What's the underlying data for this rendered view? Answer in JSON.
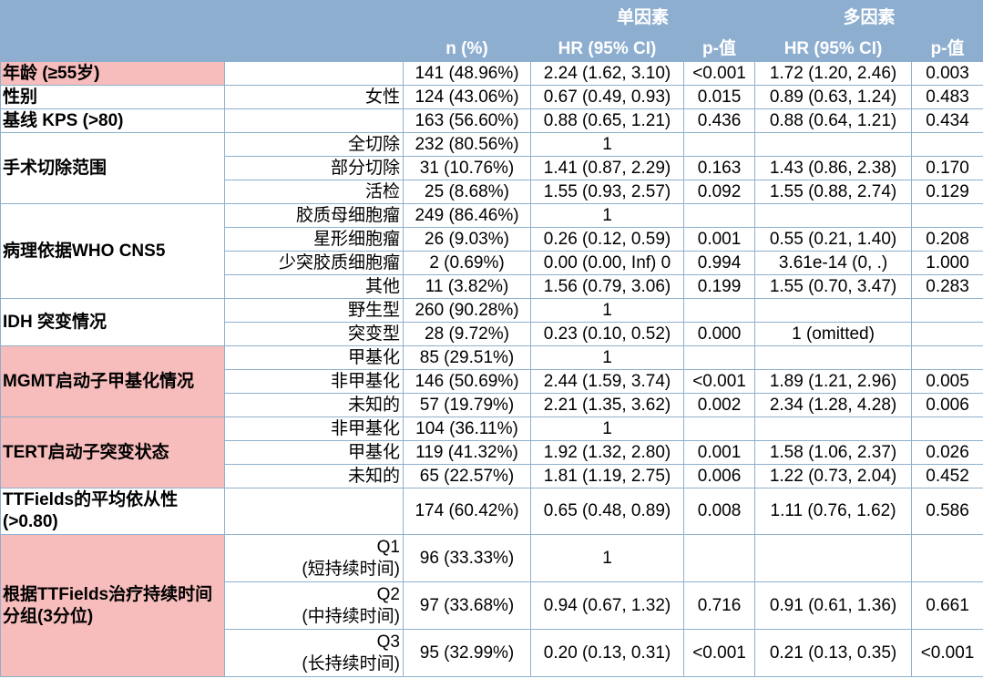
{
  "header": {
    "group_uni": "单因素",
    "group_multi": "多因素",
    "n": "n (%)",
    "hr_uni": "HR (95% CI)",
    "p_uni": "p-值",
    "hr_multi": "HR (95% CI)",
    "p_multi": "p-值"
  },
  "rows": {
    "age": {
      "cat": "年龄 (≥55岁)",
      "sub": "",
      "n": "141 (48.96%)",
      "hr1": "2.24 (1.62, 3.10)",
      "p1": "<0.001",
      "hr2": "1.72 (1.20, 2.46)",
      "p2": "0.003"
    },
    "sex": {
      "cat": "性别",
      "sub": "女性",
      "n": "124 (43.06%)",
      "hr1": "0.67 (0.49, 0.93)",
      "p1": "0.015",
      "hr2": "0.89 (0.63, 1.24)",
      "p2": "0.483"
    },
    "kps": {
      "cat": "基线 KPS (>80)",
      "sub": "",
      "n": "163 (56.60%)",
      "hr1": "0.88 (0.65, 1.21)",
      "p1": "0.436",
      "hr2": "0.88 (0.64, 1.21)",
      "p2": "0.434"
    },
    "resection": {
      "cat": "手术切除范围",
      "items": [
        {
          "sub": "全切除",
          "n": "232 (80.56%)",
          "hr1": "1",
          "p1": "",
          "hr2": "",
          "p2": ""
        },
        {
          "sub": "部分切除",
          "n": "31 (10.76%)",
          "hr1": "1.41 (0.87, 2.29)",
          "p1": "0.163",
          "hr2": "1.43 (0.86, 2.38)",
          "p2": "0.170"
        },
        {
          "sub": "活检",
          "n": "25 (8.68%)",
          "hr1": "1.55 (0.93, 2.57)",
          "p1": "0.092",
          "hr2": "1.55 (0.88, 2.74)",
          "p2": "0.129"
        }
      ]
    },
    "pathology": {
      "cat": "病理依据WHO CNS5",
      "items": [
        {
          "sub": "胶质母细胞瘤",
          "n": "249 (86.46%)",
          "hr1": "1",
          "p1": "",
          "hr2": "",
          "p2": ""
        },
        {
          "sub": "星形细胞瘤",
          "n": "26 (9.03%)",
          "hr1": "0.26 (0.12, 0.59)",
          "p1": "0.001",
          "hr2": "0.55 (0.21, 1.40)",
          "p2": "0.208"
        },
        {
          "sub": "少突胶质细胞瘤",
          "n": "2 (0.69%)",
          "hr1": "0.00 (0.00, Inf) 0",
          "p1": "0.994",
          "hr2": "3.61e-14 (0, .)",
          "p2": "1.000"
        },
        {
          "sub": "其他",
          "n": "11 (3.82%)",
          "hr1": "1.56 (0.79, 3.06)",
          "p1": "0.199",
          "hr2": "1.55 (0.70, 3.47)",
          "p2": "0.283"
        }
      ]
    },
    "idh": {
      "cat": "IDH 突变情况",
      "items": [
        {
          "sub": "野生型",
          "n": "260 (90.28%)",
          "hr1": "1",
          "p1": "",
          "hr2": "",
          "p2": ""
        },
        {
          "sub": "突变型",
          "n": "28 (9.72%)",
          "hr1": "0.23 (0.10, 0.52)",
          "p1": "0.000",
          "hr2": "1 (omitted)",
          "p2": ""
        }
      ]
    },
    "mgmt": {
      "cat": "MGMT启动子甲基化情况",
      "items": [
        {
          "sub": "甲基化",
          "n": "85 (29.51%)",
          "hr1": "1",
          "p1": "",
          "hr2": "",
          "p2": ""
        },
        {
          "sub": "非甲基化",
          "n": "146 (50.69%)",
          "hr1": "2.44 (1.59, 3.74)",
          "p1": "<0.001",
          "hr2": "1.89 (1.21, 2.96)",
          "p2": "0.005"
        },
        {
          "sub": "未知的",
          "n": "57 (19.79%)",
          "hr1": "2.21 (1.35, 3.62)",
          "p1": "0.002",
          "hr2": "2.34 (1.28, 4.28)",
          "p2": "0.006"
        }
      ]
    },
    "tert": {
      "cat": "TERT启动子突变状态",
      "items": [
        {
          "sub": "非甲基化",
          "n": "104 (36.11%)",
          "hr1": "1",
          "p1": "",
          "hr2": "",
          "p2": ""
        },
        {
          "sub": "甲基化",
          "n": "119 (41.32%)",
          "hr1": "1.92 (1.32, 2.80)",
          "p1": "0.001",
          "hr2": "1.58 (1.06, 2.37)",
          "p2": "0.026"
        },
        {
          "sub": "未知的",
          "n": "65 (22.57%)",
          "hr1": "1.81 (1.19, 2.75)",
          "p1": "0.006",
          "hr2": "1.22 (0.73, 2.04)",
          "p2": "0.452"
        }
      ]
    },
    "adherence": {
      "cat": "TTFields的平均依从性 (>0.80)",
      "sub": "",
      "n": "174 (60.42%)",
      "hr1": "0.65 (0.48, 0.89)",
      "p1": "0.008",
      "hr2": "1.11 (0.76, 1.62)",
      "p2": "0.586"
    },
    "duration": {
      "cat": "根据TTFields治疗持续时间分组(3分位)",
      "items": [
        {
          "sub_a": "Q1",
          "sub_b": "(短持续时间)",
          "n": "96 (33.33%)",
          "hr1": "1",
          "p1": "",
          "hr2": "",
          "p2": ""
        },
        {
          "sub_a": "Q2",
          "sub_b": "(中持续时间)",
          "n": "97 (33.68%)",
          "hr1": "0.94 (0.67, 1.32)",
          "p1": "0.716",
          "hr2": "0.91 (0.61, 1.36)",
          "p2": "0.661"
        },
        {
          "sub_a": "Q3",
          "sub_b": "(长持续时间)",
          "n": "95 (32.99%)",
          "hr1": "0.20 (0.13, 0.31)",
          "p1": "<0.001",
          "hr2": "0.21 (0.13, 0.35)",
          "p2": "<0.001"
        }
      ]
    }
  }
}
